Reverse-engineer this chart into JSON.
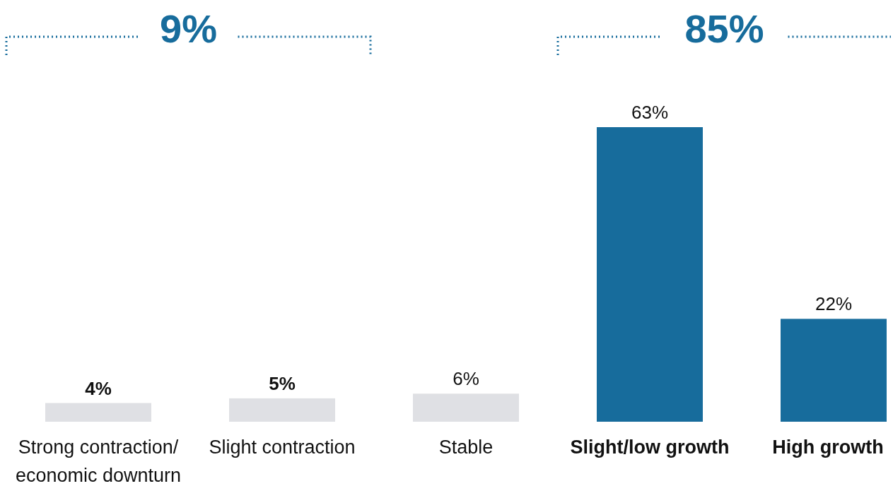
{
  "chart_data": {
    "type": "bar",
    "categories": [
      "Strong contraction/\neconomic downturn",
      "Slight contraction",
      "Stable",
      "Slight/low growth",
      "High growth"
    ],
    "values": [
      4,
      5,
      6,
      63,
      22
    ],
    "colors": [
      "#dfe0e4",
      "#dfe0e4",
      "#dfe0e4",
      "#176c9c",
      "#176c9c"
    ],
    "value_labels": [
      "4%",
      "5%",
      "6%",
      "63%",
      "22%"
    ],
    "annotations": [
      "9%",
      "85%"
    ]
  }
}
